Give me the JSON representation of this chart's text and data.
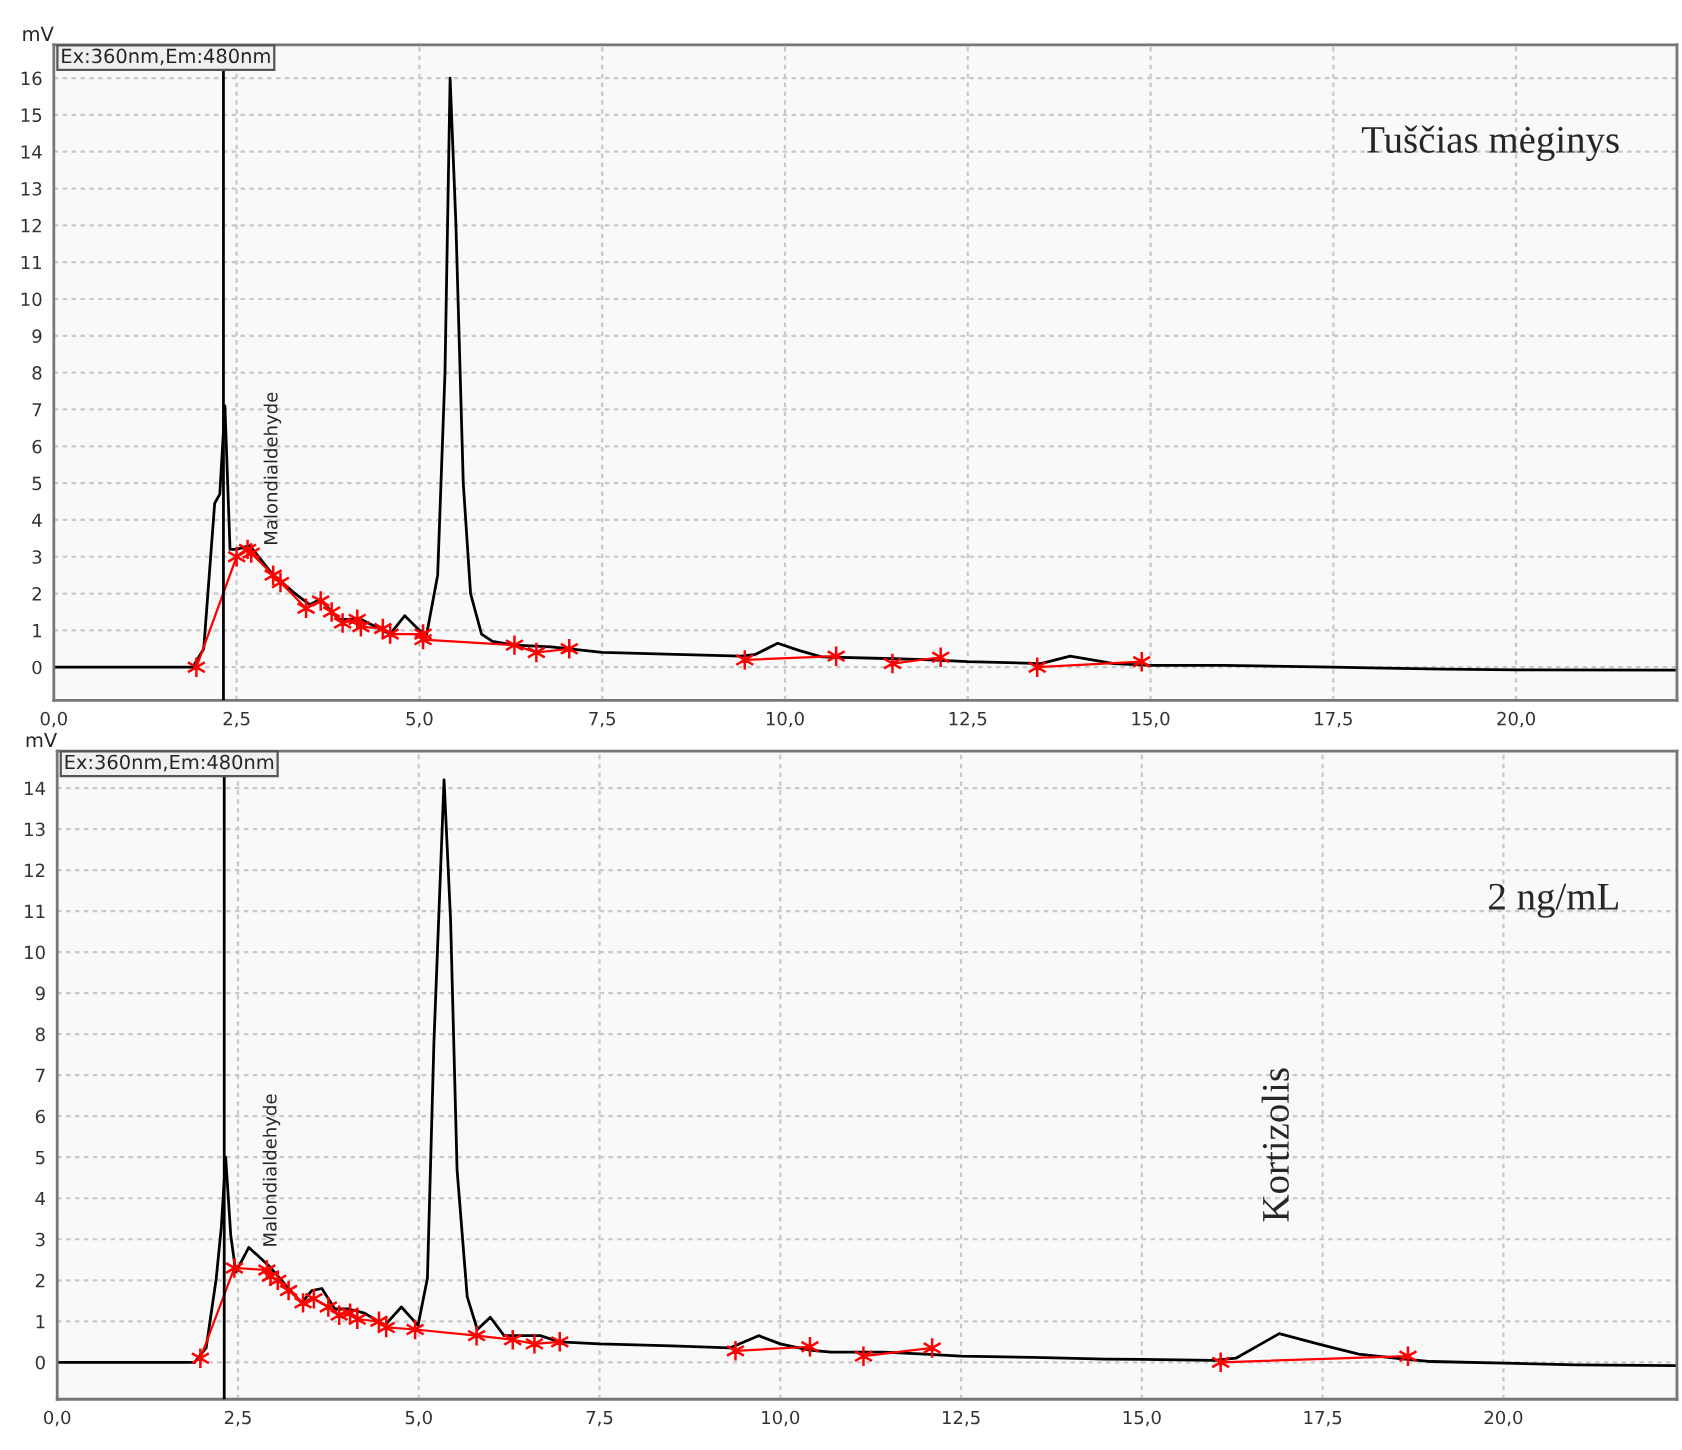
{
  "chart_data": [
    {
      "type": "line",
      "title": "Ex:360nm,Em:480nm",
      "subtitle": "Tuščias mėginys",
      "ylabel": "mV",
      "xlim": [
        0,
        22.2
      ],
      "ylim": [
        -0.9,
        16.9
      ],
      "xticks": [
        {
          "value": 0,
          "label": "0,0"
        },
        {
          "value": 2.5,
          "label": "2,5"
        },
        {
          "value": 5,
          "label": "5,0"
        },
        {
          "value": 7.5,
          "label": "7,5"
        },
        {
          "value": 10,
          "label": "10,0"
        },
        {
          "value": 12.5,
          "label": "12,5"
        },
        {
          "value": 15,
          "label": "15,0"
        },
        {
          "value": 17.5,
          "label": "17,5"
        },
        {
          "value": 20,
          "label": "20,0"
        }
      ],
      "yticks": [
        0,
        1,
        2,
        3,
        4,
        5,
        6,
        7,
        8,
        9,
        10,
        11,
        12,
        13,
        14,
        15,
        16
      ],
      "grid": true,
      "ref_lines": [
        {
          "axis": "x",
          "value": 2.32,
          "color": "#000000",
          "line_style": "solid"
        }
      ],
      "annotations": [
        {
          "text": "Malondialdehyde",
          "x": 2.68,
          "y": 3.3
        }
      ],
      "series": [
        {
          "color": "#000000",
          "marker": "none",
          "line_style": "solid",
          "x": [
            0,
            1.9,
            2.05,
            2.2,
            2.27,
            2.34,
            2.41,
            2.5,
            2.68,
            3.0,
            3.3,
            3.5,
            3.65,
            3.8,
            3.9,
            4.2,
            4.5,
            4.6,
            4.8,
            5.0,
            5.1,
            5.25,
            5.35,
            5.42,
            5.5,
            5.6,
            5.7,
            5.85,
            6.0,
            6.3,
            6.8,
            7.5,
            8.5,
            9.4,
            9.6,
            9.9,
            10.2,
            10.5,
            11.5,
            12.0,
            12.5,
            13.5,
            13.9,
            14.5,
            15.0,
            16.0,
            17.5,
            18.0,
            19.0,
            20.0,
            22.2
          ],
          "values": [
            0,
            0,
            0.5,
            4.45,
            4.7,
            7.1,
            3.2,
            3.2,
            3.3,
            2.5,
            2.0,
            1.7,
            1.85,
            1.5,
            1.3,
            1.3,
            1.0,
            0.9,
            1.4,
            1.0,
            0.9,
            2.5,
            8.0,
            16.0,
            12.0,
            5.0,
            2.0,
            0.9,
            0.7,
            0.6,
            0.55,
            0.4,
            0.35,
            0.3,
            0.35,
            0.65,
            0.45,
            0.28,
            0.23,
            0.2,
            0.15,
            0.1,
            0.3,
            0.1,
            0.05,
            0.05,
            0.0,
            -0.02,
            -0.05,
            -0.07,
            -0.08
          ]
        },
        {
          "color": "#ff0000",
          "marker": "cross",
          "line_style": "solid",
          "x": [
            1.95,
            2.5,
            2.65,
            2.7,
            3.0,
            3.1,
            3.45,
            3.65,
            3.8,
            3.95,
            4.15,
            4.2,
            4.5,
            4.6,
            5.05,
            5.05,
            6.3,
            6.6,
            7.05,
            8.0,
            9.45,
            10.7,
            11.0,
            11.47,
            12.13,
            12.8,
            13.45,
            14.88
          ],
          "values": [
            0,
            3.0,
            3.2,
            3.1,
            2.5,
            2.3,
            1.6,
            1.8,
            1.5,
            1.2,
            1.3,
            1.1,
            1.05,
            0.9,
            0.9,
            0.75,
            0.6,
            0.4,
            0.5,
            null,
            0.2,
            0.3,
            null,
            0.1,
            0.27,
            null,
            0.0,
            0.15
          ]
        }
      ]
    },
    {
      "type": "line",
      "title": "Ex:360nm,Em:480nm",
      "subtitle": "2 ng/mL",
      "ylabel": "mV",
      "xlim": [
        0,
        22.4
      ],
      "ylim": [
        -0.9,
        14.9
      ],
      "xticks": [
        {
          "value": 0,
          "label": "0,0"
        },
        {
          "value": 2.5,
          "label": "2,5"
        },
        {
          "value": 5,
          "label": "5,0"
        },
        {
          "value": 7.5,
          "label": "7,5"
        },
        {
          "value": 10,
          "label": "10,0"
        },
        {
          "value": 12.5,
          "label": "12,5"
        },
        {
          "value": 15,
          "label": "15,0"
        },
        {
          "value": 17.5,
          "label": "17,5"
        },
        {
          "value": 20,
          "label": "20,0"
        }
      ],
      "yticks": [
        0,
        1,
        2,
        3,
        4,
        5,
        6,
        7,
        8,
        9,
        10,
        11,
        12,
        13,
        14
      ],
      "grid": true,
      "ref_lines": [
        {
          "axis": "x",
          "value": 2.31,
          "color": "#000000",
          "line_style": "solid"
        }
      ],
      "annotations": [
        {
          "text": "Malondialdehyde",
          "x": 2.65,
          "y": 2.8
        },
        {
          "text": "Kortizolis",
          "x": 16.9,
          "y": 0.7
        }
      ],
      "series": [
        {
          "color": "#000000",
          "marker": "none",
          "line_style": "solid",
          "x": [
            0,
            1.9,
            2.06,
            2.2,
            2.27,
            2.33,
            2.4,
            2.47,
            2.65,
            2.93,
            3.2,
            3.38,
            3.52,
            3.66,
            3.84,
            4.03,
            4.25,
            4.53,
            4.76,
            4.99,
            5.12,
            5.21,
            5.35,
            5.44,
            5.53,
            5.67,
            5.81,
            5.99,
            6.18,
            6.68,
            6.95,
            7.5,
            8.5,
            9.3,
            9.7,
            10.0,
            10.4,
            10.7,
            11.43,
            12.0,
            12.5,
            13.5,
            14.5,
            15.0,
            16.0,
            16.3,
            16.9,
            17.5,
            18.0,
            18.5,
            19.0,
            20.0,
            21.0,
            22.4
          ],
          "values": [
            0,
            0,
            0.35,
            2.05,
            3.3,
            5.0,
            3.1,
            2.2,
            2.8,
            2.35,
            1.8,
            1.45,
            1.75,
            1.8,
            1.3,
            1.3,
            1.2,
            0.9,
            1.35,
            0.9,
            2.05,
            7.8,
            14.2,
            10.8,
            4.7,
            1.6,
            0.8,
            1.1,
            0.65,
            0.65,
            0.5,
            0.45,
            0.4,
            0.35,
            0.65,
            0.45,
            0.3,
            0.25,
            0.25,
            0.2,
            0.15,
            0.12,
            0.08,
            0.07,
            0.05,
            0.1,
            0.7,
            0.42,
            0.2,
            0.1,
            0.02,
            -0.02,
            -0.06,
            -0.08
          ]
        },
        {
          "color": "#ff0000",
          "marker": "cross",
          "line_style": "solid",
          "x": [
            1.98,
            2.45,
            2.9,
            2.95,
            3.05,
            3.2,
            3.4,
            3.55,
            3.75,
            3.9,
            4.05,
            4.15,
            4.45,
            4.55,
            4.95,
            5.8,
            6.3,
            6.6,
            6.95,
            8.0,
            9.38,
            10.41,
            10.8,
            11.15,
            12.1,
            14.0,
            16.09,
            18.68
          ],
          "values": [
            0.1,
            2.3,
            2.25,
            2.1,
            2.0,
            1.75,
            1.45,
            1.55,
            1.35,
            1.15,
            1.2,
            1.05,
            1.0,
            0.85,
            0.8,
            0.65,
            0.55,
            0.45,
            0.5,
            null,
            0.28,
            0.38,
            null,
            0.15,
            0.35,
            null,
            0.0,
            0.15
          ]
        }
      ]
    }
  ]
}
